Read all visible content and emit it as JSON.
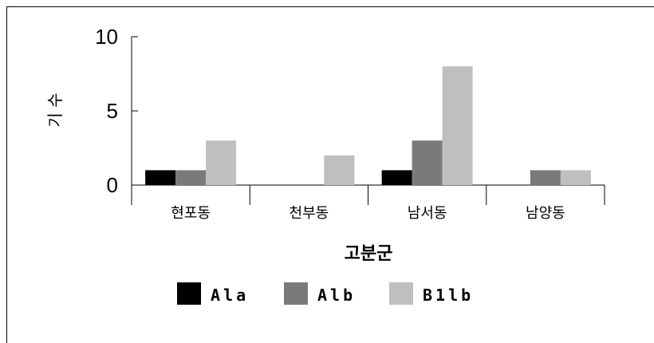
{
  "chart_data": {
    "type": "bar",
    "title": "",
    "ylabel": "기 수",
    "xlabel": "고분군",
    "categories": [
      "현포동",
      "천부동",
      "남서동",
      "남양동"
    ],
    "ylim": [
      0,
      10
    ],
    "yticks": [
      "0",
      "5",
      "10"
    ],
    "grid": false,
    "legend_position": "bottom",
    "series": [
      {
        "name": "Ala",
        "color": "#000000",
        "values": [
          1,
          0,
          1,
          0
        ]
      },
      {
        "name": "Alb",
        "color": "#7a7a7a",
        "values": [
          1,
          0,
          3,
          1
        ]
      },
      {
        "name": "B1lb",
        "color": "#bfbfbf",
        "values": [
          3,
          2,
          8,
          1
        ]
      }
    ]
  }
}
